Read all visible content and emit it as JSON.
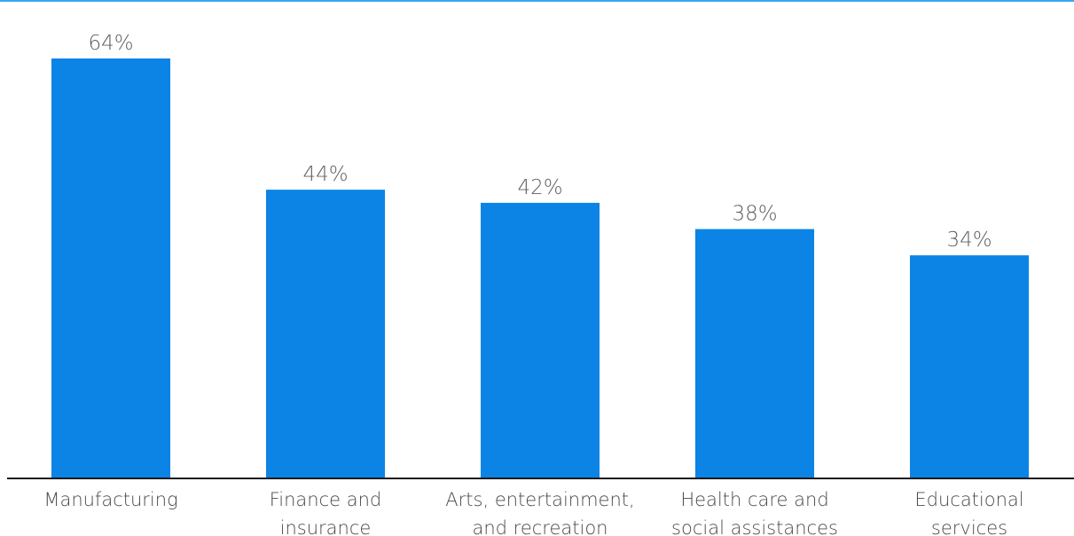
{
  "chart_data": {
    "type": "bar",
    "categories": [
      "Manufacturing",
      "Finance and insurance",
      "Arts, entertainment, and recreation",
      "Health care and social assistances",
      "Educational services"
    ],
    "category_lines": [
      [
        "Manufacturing"
      ],
      [
        "Finance and",
        "insurance"
      ],
      [
        "Arts, entertainment,",
        "and recreation"
      ],
      [
        "Health care and",
        "social assistances"
      ],
      [
        "Educational",
        "services"
      ]
    ],
    "values": [
      64,
      44,
      42,
      38,
      34
    ],
    "value_labels": [
      "64%",
      "44%",
      "42%",
      "38%",
      "34%"
    ],
    "ylim": [
      0,
      64
    ],
    "grid": false,
    "colors": {
      "bar": "#0b84e6",
      "top_rule": "#3aa6ee",
      "baseline": "#1a1a1a"
    }
  }
}
